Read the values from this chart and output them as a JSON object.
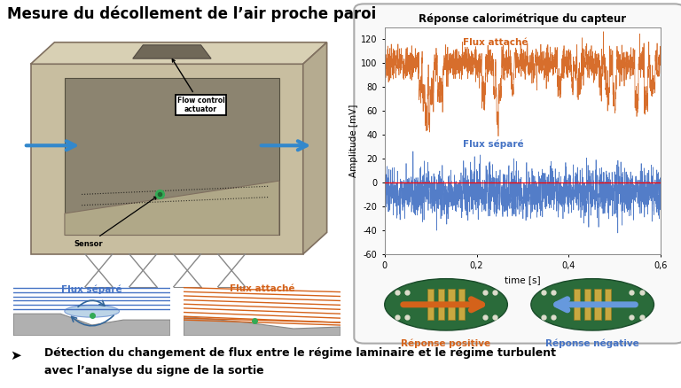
{
  "title_main": "Mesure du décollement de l’air proche paroi",
  "chart_title": "Réponse calorimétrique du capteur",
  "label_flux_attache": "Flux attaché",
  "label_flux_separe": "Flux séparé",
  "xlabel": "time [s]",
  "ylabel": "Amplitude [mV]",
  "xlim": [
    0,
    0.6
  ],
  "ylim": [
    -60,
    130
  ],
  "yticks": [
    -60,
    -40,
    -20,
    0,
    20,
    40,
    60,
    80,
    100,
    120
  ],
  "xticks": [
    0,
    0.2,
    0.4,
    0.6
  ],
  "xtick_labels": [
    "0",
    "0,2",
    "0,4",
    "0,6"
  ],
  "color_orange": "#D4621A",
  "color_blue": "#4472C4",
  "color_blue_light": "#6699DD",
  "color_red": "#FF0000",
  "bottom_text_line1": "Détection du changement de flux entre le régime laminaire et le régime turbulent",
  "bottom_text_line2": "avec l’analyse du signe de la sortie",
  "label_flow_control": "Flow control\nactuator",
  "label_sensor": "Sensor",
  "label_flux_separe_diagram": "Flux séparé",
  "label_flux_attache_diagram": "Flux attaché",
  "label_reponse_positive": "Réponse positive",
  "label_reponse_negative": "Réponse négative",
  "n_points": 2000,
  "flux_attache_mean": 100,
  "flux_attache_std": 7,
  "flux_separe_mean": -8,
  "flux_separe_std": 10,
  "background_color": "#FFFFFF",
  "panel_edge_color": "#AAAAAA",
  "tunnel_body": "#C8BEA0",
  "tunnel_top": "#D8D0B4",
  "tunnel_right": "#B0A890",
  "tunnel_inner": "#888070",
  "gray_ground": "#B0B0B0"
}
